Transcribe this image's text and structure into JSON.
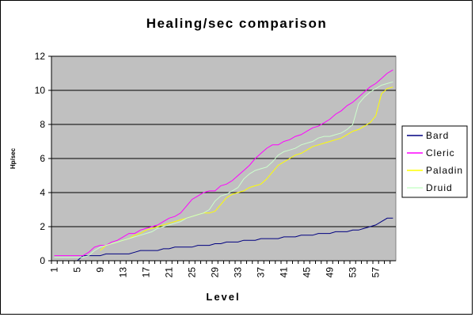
{
  "chart_data": {
    "type": "line",
    "title": "Healing/sec comparison",
    "xlabel": "Level",
    "ylabel": "Hp/sec",
    "ylim": [
      0,
      12
    ],
    "xlim": [
      1,
      60
    ],
    "yticks": [
      0,
      2,
      4,
      6,
      8,
      10,
      12
    ],
    "xticks": [
      1,
      5,
      9,
      13,
      17,
      21,
      25,
      29,
      33,
      37,
      41,
      45,
      49,
      53,
      57
    ],
    "grid": "horizontal major gridlines",
    "plot_background": "#c0c0c0",
    "legend_position": "right",
    "x": [
      1,
      2,
      3,
      4,
      5,
      6,
      7,
      8,
      9,
      10,
      11,
      12,
      13,
      14,
      15,
      16,
      17,
      18,
      19,
      20,
      21,
      22,
      23,
      24,
      25,
      26,
      27,
      28,
      29,
      30,
      31,
      32,
      33,
      34,
      35,
      36,
      37,
      38,
      39,
      40,
      41,
      42,
      43,
      44,
      45,
      46,
      47,
      48,
      49,
      50,
      51,
      52,
      53,
      54,
      55,
      56,
      57,
      58,
      59,
      60
    ],
    "series": [
      {
        "name": "Bard",
        "color": "#000080",
        "values": [
          0,
          0,
          0,
          0,
          0,
          0.3,
          0.3,
          0.3,
          0.3,
          0.4,
          0.4,
          0.4,
          0.4,
          0.4,
          0.5,
          0.6,
          0.6,
          0.6,
          0.6,
          0.7,
          0.7,
          0.8,
          0.8,
          0.8,
          0.8,
          0.9,
          0.9,
          0.9,
          1.0,
          1.0,
          1.1,
          1.1,
          1.1,
          1.2,
          1.2,
          1.2,
          1.3,
          1.3,
          1.3,
          1.3,
          1.4,
          1.4,
          1.4,
          1.5,
          1.5,
          1.5,
          1.6,
          1.6,
          1.6,
          1.7,
          1.7,
          1.7,
          1.8,
          1.8,
          1.9,
          2.0,
          2.1,
          2.3,
          2.5,
          2.5
        ]
      },
      {
        "name": "Cleric",
        "color": "#ff00ff",
        "values": [
          0.3,
          0.3,
          0.3,
          0.3,
          0.3,
          0.3,
          0.5,
          0.8,
          0.9,
          0.9,
          1.1,
          1.2,
          1.4,
          1.6,
          1.6,
          1.8,
          1.9,
          2.0,
          2.1,
          2.3,
          2.5,
          2.6,
          2.8,
          3.2,
          3.6,
          3.8,
          4.0,
          4.1,
          4.1,
          4.4,
          4.5,
          4.7,
          5.0,
          5.3,
          5.6,
          6.0,
          6.3,
          6.6,
          6.8,
          6.8,
          7.0,
          7.1,
          7.3,
          7.4,
          7.6,
          7.8,
          7.9,
          8.1,
          8.3,
          8.6,
          8.8,
          9.1,
          9.3,
          9.6,
          9.9,
          10.2,
          10.4,
          10.7,
          11.0,
          11.2
        ]
      },
      {
        "name": "Paladin",
        "color": "#ffff00",
        "values": [
          null,
          null,
          null,
          null,
          null,
          null,
          null,
          null,
          0.6,
          0.9,
          1.0,
          1.1,
          1.2,
          1.3,
          1.5,
          1.6,
          1.8,
          1.9,
          2.0,
          2.1,
          2.2,
          2.3,
          2.4,
          2.5,
          2.6,
          2.7,
          2.8,
          2.8,
          2.9,
          3.3,
          3.7,
          3.9,
          4.0,
          4.1,
          4.3,
          4.4,
          4.5,
          4.8,
          5.2,
          5.6,
          5.8,
          6.0,
          6.2,
          6.3,
          6.5,
          6.7,
          6.8,
          6.9,
          7.0,
          7.1,
          7.2,
          7.4,
          7.6,
          7.7,
          7.9,
          8.1,
          8.5,
          9.8,
          10.1,
          10.2
        ]
      },
      {
        "name": "Druid",
        "color": "#ccffcc",
        "values": [
          0.2,
          0.2,
          0.2,
          0.2,
          0.2,
          0.2,
          0.3,
          0.6,
          0.8,
          0.9,
          1.0,
          1.1,
          1.2,
          1.3,
          1.4,
          1.5,
          1.6,
          1.7,
          1.9,
          2.0,
          2.1,
          2.2,
          2.3,
          2.5,
          2.6,
          2.7,
          2.8,
          3.0,
          3.5,
          3.8,
          3.9,
          4.1,
          4.3,
          4.8,
          5.1,
          5.3,
          5.4,
          5.5,
          5.8,
          6.2,
          6.4,
          6.5,
          6.6,
          6.8,
          6.9,
          7.0,
          7.2,
          7.3,
          7.3,
          7.4,
          7.5,
          7.7,
          8.0,
          9.2,
          9.6,
          9.9,
          10.1,
          10.3,
          10.4,
          10.5
        ]
      }
    ]
  }
}
